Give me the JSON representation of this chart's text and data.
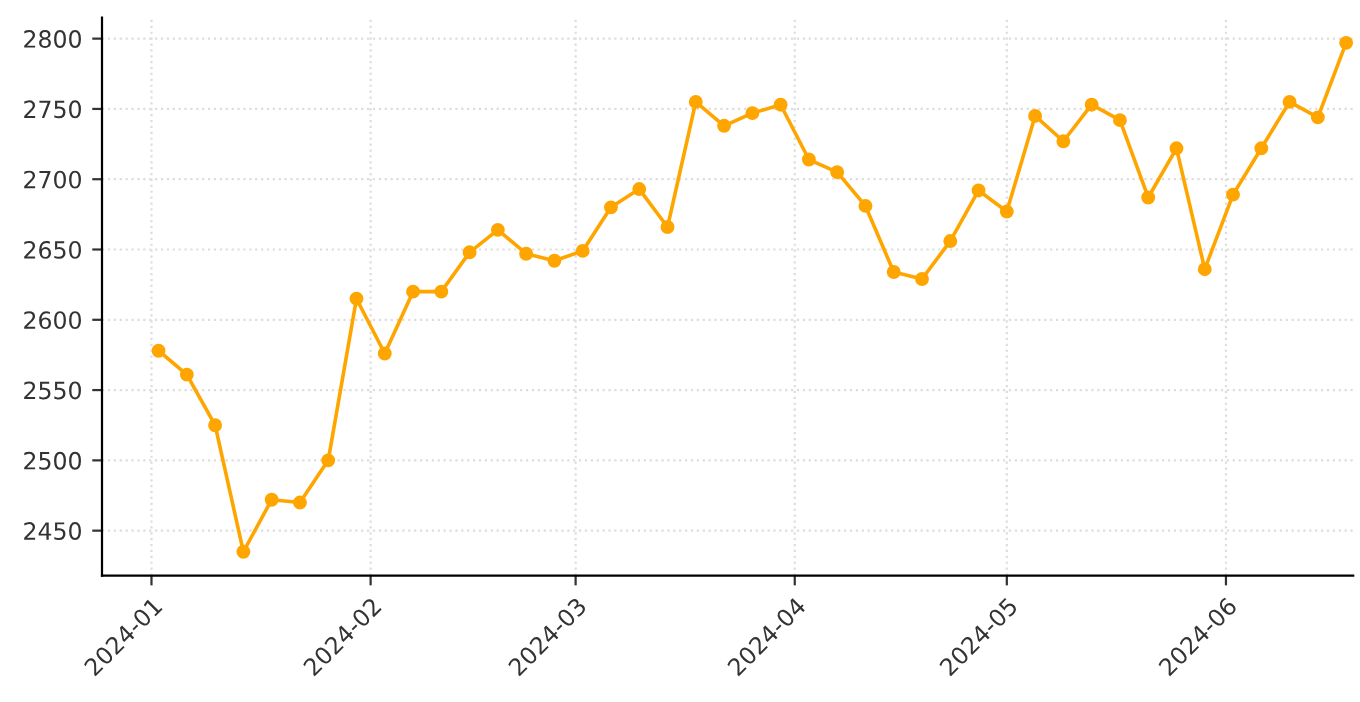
{
  "chart_data": {
    "type": "line",
    "x": [
      "2024-01-02",
      "2024-01-06",
      "2024-01-10",
      "2024-01-14",
      "2024-01-18",
      "2024-01-22",
      "2024-01-26",
      "2024-01-30",
      "2024-02-03",
      "2024-02-07",
      "2024-02-11",
      "2024-02-15",
      "2024-02-19",
      "2024-02-23",
      "2024-02-27",
      "2024-03-02",
      "2024-03-06",
      "2024-03-10",
      "2024-03-14",
      "2024-03-18",
      "2024-03-22",
      "2024-03-26",
      "2024-03-30",
      "2024-04-03",
      "2024-04-07",
      "2024-04-11",
      "2024-04-15",
      "2024-04-19",
      "2024-04-23",
      "2024-04-27",
      "2024-05-01",
      "2024-05-05",
      "2024-05-09",
      "2024-05-13",
      "2024-05-17",
      "2024-05-21",
      "2024-05-25",
      "2024-05-29",
      "2024-06-02",
      "2024-06-06",
      "2024-06-10",
      "2024-06-14",
      "2024-06-18"
    ],
    "series": [
      {
        "color": "#ffa500",
        "values": [
          2578,
          2561,
          2525,
          2435,
          2472,
          2470,
          2500,
          2615,
          2576,
          2620,
          2620,
          2648,
          2664,
          2647,
          2642,
          2649,
          2680,
          2693,
          2666,
          2755,
          2738,
          2747,
          2753,
          2714,
          2705,
          2681,
          2634,
          2629,
          2656,
          2692,
          2677,
          2745,
          2727,
          2753,
          2742,
          2687,
          2722,
          2636,
          2689,
          2722,
          2755,
          2744,
          2797
        ]
      }
    ],
    "xlim": [
      "2023-12-25",
      "2024-06-19"
    ],
    "xticks": [
      {
        "value": "2024-01-01",
        "label": "2024-01"
      },
      {
        "value": "2024-02-01",
        "label": "2024-02"
      },
      {
        "value": "2024-03-01",
        "label": "2024-03"
      },
      {
        "value": "2024-04-01",
        "label": "2024-04"
      },
      {
        "value": "2024-05-01",
        "label": "2024-05"
      },
      {
        "value": "2024-06-01",
        "label": "2024-06"
      }
    ],
    "ylim": [
      2418,
      2815
    ],
    "yticks": [
      2450,
      2500,
      2550,
      2600,
      2650,
      2700,
      2750,
      2800
    ],
    "grid": true,
    "marker": "circle",
    "line_style": "solid",
    "legend": false
  }
}
